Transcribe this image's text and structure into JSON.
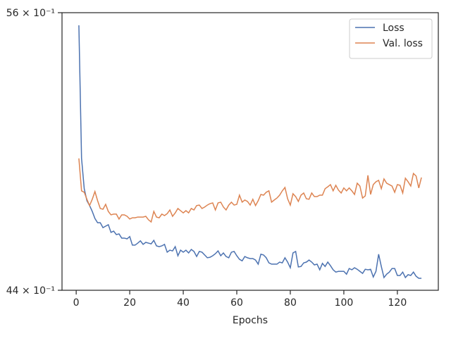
{
  "chart_data": {
    "type": "line",
    "xlabel": "Epochs",
    "log_y": true,
    "legend": "upper right",
    "xlim": [
      -5.3,
      135.3
    ],
    "xticks": [
      0,
      20,
      40,
      60,
      80,
      100,
      120
    ],
    "ylim": [
      4.4,
      5.6
    ],
    "yticks": [
      {
        "value": 4.4,
        "label": "44 × 10⁻¹"
      },
      {
        "value": 5.6,
        "label": "56 × 10⁻¹"
      }
    ],
    "x": [
      1,
      2,
      3,
      4,
      5,
      6,
      7,
      8,
      9,
      10,
      11,
      12,
      13,
      14,
      15,
      16,
      17,
      18,
      19,
      20,
      21,
      22,
      23,
      24,
      25,
      26,
      27,
      28,
      29,
      30,
      31,
      32,
      33,
      34,
      35,
      36,
      37,
      38,
      39,
      40,
      41,
      42,
      43,
      44,
      45,
      46,
      47,
      48,
      49,
      50,
      51,
      52,
      53,
      54,
      55,
      56,
      57,
      58,
      59,
      60,
      61,
      62,
      63,
      64,
      65,
      66,
      67,
      68,
      69,
      70,
      71,
      72,
      73,
      74,
      75,
      76,
      77,
      78,
      79,
      80,
      81,
      82,
      83,
      84,
      85,
      86,
      87,
      88,
      89,
      90,
      91,
      92,
      93,
      94,
      95,
      96,
      97,
      98,
      99,
      100,
      101,
      102,
      103,
      104,
      105,
      106,
      107,
      108,
      109,
      110,
      111,
      112,
      113,
      114,
      115,
      116,
      117,
      118,
      119,
      120,
      121,
      122,
      123,
      124,
      125,
      126,
      127,
      128,
      129
    ],
    "series": [
      {
        "name": "Loss",
        "color": "#4c72b0",
        "values": [
          5.539,
          4.934,
          4.806,
          4.756,
          4.736,
          4.712,
          4.683,
          4.666,
          4.666,
          4.646,
          4.652,
          4.658,
          4.627,
          4.632,
          4.618,
          4.621,
          4.604,
          4.604,
          4.601,
          4.61,
          4.576,
          4.576,
          4.584,
          4.593,
          4.579,
          4.587,
          4.584,
          4.581,
          4.595,
          4.573,
          4.57,
          4.573,
          4.579,
          4.548,
          4.556,
          4.553,
          4.57,
          4.534,
          4.556,
          4.548,
          4.556,
          4.545,
          4.559,
          4.551,
          4.531,
          4.551,
          4.548,
          4.537,
          4.526,
          4.528,
          4.534,
          4.542,
          4.553,
          4.534,
          4.545,
          4.531,
          4.526,
          4.548,
          4.551,
          4.534,
          4.52,
          4.514,
          4.531,
          4.526,
          4.523,
          4.523,
          4.517,
          4.501,
          4.54,
          4.537,
          4.526,
          4.506,
          4.501,
          4.501,
          4.501,
          4.509,
          4.506,
          4.526,
          4.509,
          4.487,
          4.545,
          4.551,
          4.49,
          4.492,
          4.506,
          4.509,
          4.517,
          4.509,
          4.498,
          4.501,
          4.479,
          4.504,
          4.492,
          4.509,
          4.495,
          4.479,
          4.47,
          4.473,
          4.473,
          4.473,
          4.462,
          4.484,
          4.479,
          4.487,
          4.481,
          4.473,
          4.465,
          4.481,
          4.479,
          4.481,
          4.451,
          4.473,
          4.54,
          4.492,
          4.449,
          4.462,
          4.47,
          4.484,
          4.484,
          4.457,
          4.457,
          4.47,
          4.449,
          4.46,
          4.457,
          4.47,
          4.454,
          4.446,
          4.446
        ]
      },
      {
        "name": "Val. loss",
        "color": "#dd8452",
        "values": [
          4.934,
          4.797,
          4.791,
          4.762,
          4.736,
          4.762,
          4.794,
          4.756,
          4.724,
          4.721,
          4.741,
          4.712,
          4.698,
          4.701,
          4.701,
          4.681,
          4.698,
          4.698,
          4.692,
          4.681,
          4.686,
          4.686,
          4.689,
          4.689,
          4.689,
          4.692,
          4.678,
          4.669,
          4.712,
          4.689,
          4.686,
          4.701,
          4.695,
          4.703,
          4.718,
          4.692,
          4.706,
          4.724,
          4.715,
          4.706,
          4.715,
          4.706,
          4.724,
          4.718,
          4.736,
          4.738,
          4.724,
          4.73,
          4.738,
          4.744,
          4.747,
          4.718,
          4.747,
          4.75,
          4.73,
          4.718,
          4.738,
          4.75,
          4.738,
          4.741,
          4.779,
          4.75,
          4.759,
          4.753,
          4.738,
          4.762,
          4.736,
          4.756,
          4.782,
          4.779,
          4.791,
          4.797,
          4.75,
          4.759,
          4.767,
          4.779,
          4.797,
          4.811,
          4.764,
          4.738,
          4.785,
          4.773,
          4.753,
          4.779,
          4.788,
          4.764,
          4.762,
          4.788,
          4.773,
          4.773,
          4.779,
          4.779,
          4.806,
          4.814,
          4.823,
          4.797,
          4.82,
          4.8,
          4.788,
          4.809,
          4.797,
          4.809,
          4.797,
          4.782,
          4.829,
          4.817,
          4.767,
          4.776,
          4.862,
          4.782,
          4.823,
          4.835,
          4.841,
          4.806,
          4.847,
          4.829,
          4.823,
          4.817,
          4.791,
          4.823,
          4.82,
          4.788,
          4.85,
          4.835,
          4.817,
          4.87,
          4.859,
          4.809,
          4.853
        ]
      }
    ]
  }
}
